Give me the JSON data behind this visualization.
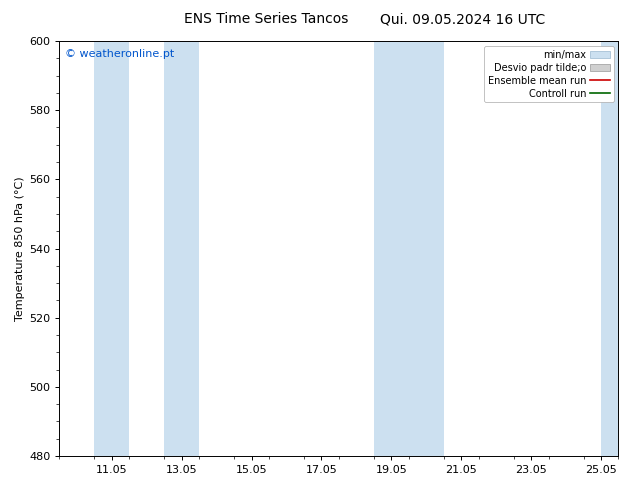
{
  "title": "ENS Time Series Tancos",
  "subtitle": "Qui. 09.05.2024 16 UTC",
  "ylabel": "Temperature 850 hPa (°C)",
  "ylim": [
    480,
    600
  ],
  "yticks": [
    480,
    500,
    520,
    540,
    560,
    580,
    600
  ],
  "xmin": 9.5,
  "xmax": 25.5,
  "xtick_positions": [
    11,
    13,
    15,
    17,
    19,
    21,
    23,
    25
  ],
  "xtick_labels": [
    "11.05",
    "13.05",
    "15.05",
    "17.05",
    "19.05",
    "21.05",
    "23.05",
    "25.05"
  ],
  "shaded_bands": [
    {
      "start": 10.5,
      "end": 11.5,
      "color": "#cce0f0"
    },
    {
      "start": 12.5,
      "end": 13.5,
      "color": "#cce0f0"
    },
    {
      "start": 18.5,
      "end": 19.5,
      "color": "#cce0f0"
    },
    {
      "start": 19.5,
      "end": 20.5,
      "color": "#cce0f0"
    },
    {
      "start": 25.0,
      "end": 25.5,
      "color": "#cce0f0"
    }
  ],
  "watermark": "© weatheronline.pt",
  "watermark_color": "#0055cc",
  "legend_entries": [
    {
      "label": "min/max",
      "type": "fill",
      "facecolor": "#cce0f0",
      "edgecolor": "#9ab8d0"
    },
    {
      "label": "Desvio padr tilde;o",
      "type": "fill",
      "facecolor": "#d0d0d0",
      "edgecolor": "#999999"
    },
    {
      "label": "Ensemble mean run",
      "type": "line",
      "color": "#cc0000"
    },
    {
      "label": "Controll run",
      "type": "line",
      "color": "#006600"
    }
  ],
  "background_color": "#ffffff",
  "title_fontsize": 10,
  "label_fontsize": 8,
  "tick_fontsize": 8,
  "watermark_fontsize": 8,
  "legend_fontsize": 7
}
